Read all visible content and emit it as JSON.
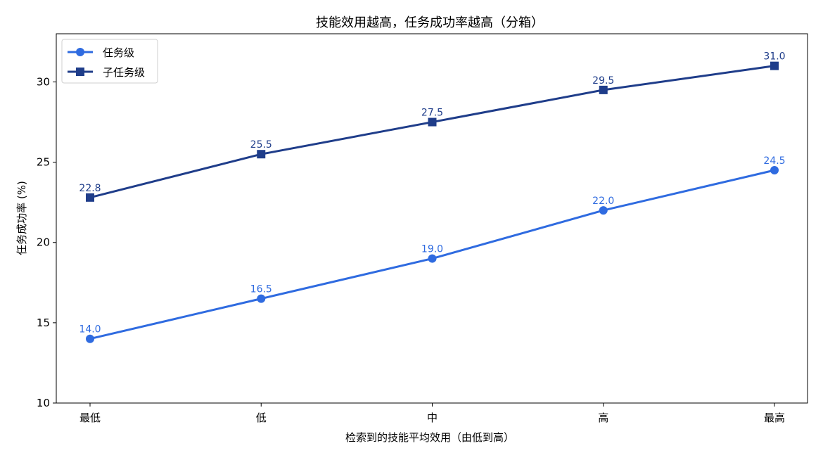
{
  "chart_data": {
    "type": "line",
    "title": "技能效用越高，任务成功率越高（分箱）",
    "xlabel": "检索到的技能平均效用（由低到高）",
    "ylabel": "任务成功率 (%)",
    "categories": [
      "最低",
      "低",
      "中",
      "高",
      "最高"
    ],
    "ylim": [
      10,
      33
    ],
    "yticks": [
      10,
      15,
      20,
      25,
      30
    ],
    "grid": false,
    "legend_position": "top-left",
    "series": [
      {
        "name": "任务级",
        "values": [
          14.0,
          16.5,
          19.0,
          22.0,
          24.5
        ],
        "labels": [
          "14.0",
          "16.5",
          "19.0",
          "22.0",
          "24.5"
        ],
        "color": "#2f6be0",
        "marker": "circle"
      },
      {
        "name": "子任务级",
        "values": [
          22.8,
          25.5,
          27.5,
          29.5,
          31.0
        ],
        "labels": [
          "22.8",
          "25.5",
          "27.5",
          "29.5",
          "31.0"
        ],
        "color": "#1f3d8a",
        "marker": "square"
      }
    ]
  }
}
